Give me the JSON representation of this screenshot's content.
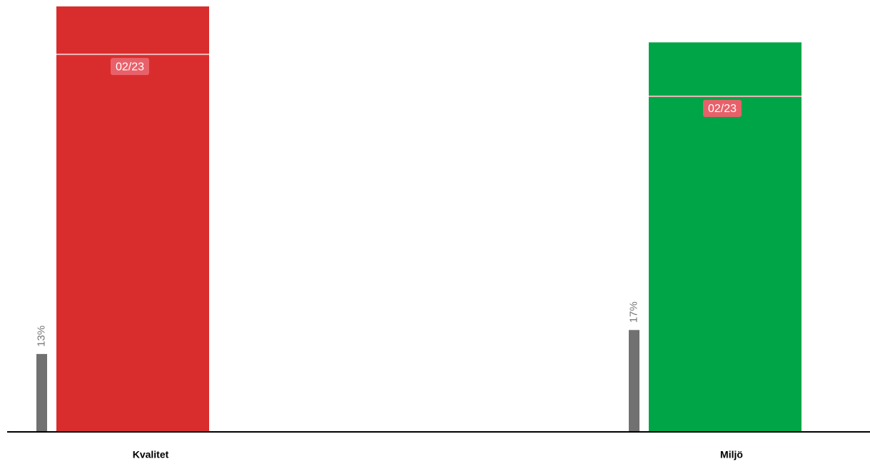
{
  "chart_data": {
    "type": "bar",
    "categories": [
      "Kvalitet",
      "Miljö"
    ],
    "values": [
      71,
      65
    ],
    "colors": [
      "#d92d2d",
      "#00a547"
    ],
    "comparison": {
      "values": [
        13,
        17
      ],
      "value_labels": [
        "13%",
        "17%"
      ],
      "color": "#717171"
    },
    "targets": {
      "values": [
        63,
        56
      ],
      "labels": [
        "02/23",
        "02/23"
      ],
      "color": "#f2b8b8",
      "label_color": "#e8616a"
    },
    "ylim": [
      0,
      71
    ]
  }
}
